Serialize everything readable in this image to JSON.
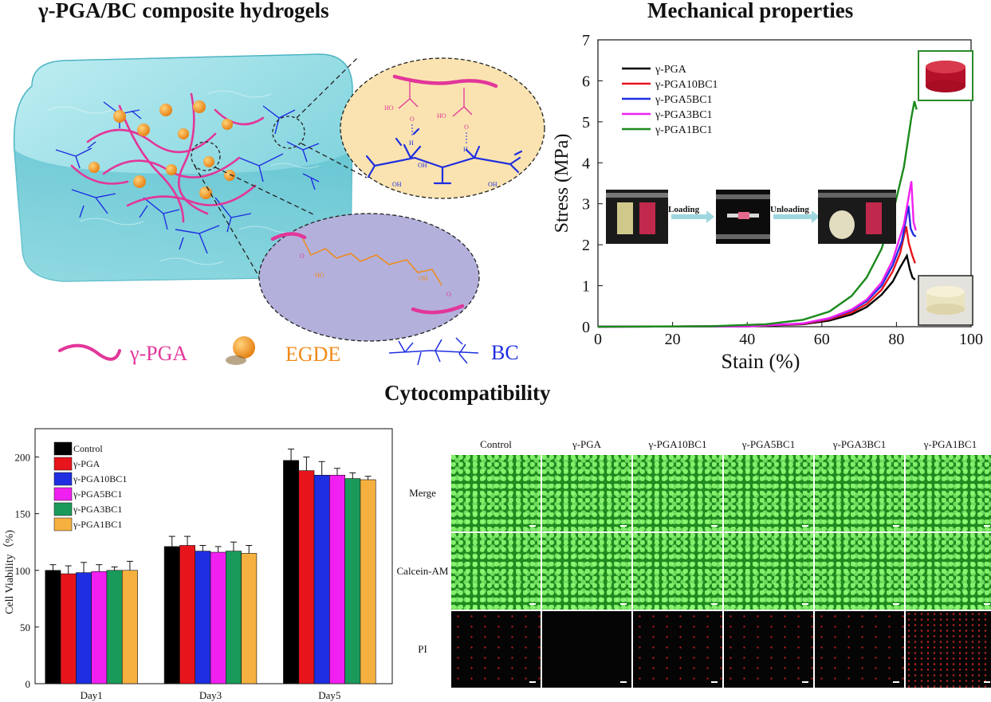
{
  "titles": {
    "left": "γ-PGA/BC composite hydrogels",
    "right": "Mechanical properties",
    "bottom": "Cytocompatibility"
  },
  "schematic": {
    "legend_pga": "γ-PGA",
    "legend_egde": "EGDE",
    "legend_bc": "BC",
    "colors": {
      "pga": "#e2369a",
      "egde": "#f08a18",
      "bc": "#1e2ee0",
      "water": "#7fd3dc",
      "zoom_top": "#fae3b0",
      "zoom_bottom": "#b3b0dc",
      "ether": "#f08a18"
    },
    "chem_top": {
      "ho1": "HO",
      "ho2": "HO",
      "o1": "O",
      "o2": "O",
      "h1": "H",
      "h2": "H",
      "oh": "OH"
    },
    "chem_bottom": {
      "ho": "HO",
      "oh": "OH",
      "o": "O"
    }
  },
  "mechanical": {
    "insets": {
      "loading": "Loading",
      "unloading": "Unloading"
    },
    "chart_data": {
      "type": "line",
      "xlabel": "Stain (%)",
      "ylabel": "Stress (MPa)",
      "xlim": [
        0,
        100
      ],
      "ylim": [
        0,
        7
      ],
      "xticks": [
        "0",
        "20",
        "40",
        "60",
        "80",
        "100"
      ],
      "yticks": [
        "0",
        "1",
        "2",
        "3",
        "4",
        "5",
        "6",
        "7"
      ],
      "legend_position": "top-left",
      "series": [
        {
          "name": "γ-PGA",
          "color": "#000000",
          "x": [
            0,
            40,
            55,
            62,
            68,
            72,
            76,
            79,
            81,
            82.8,
            83.6,
            84.3,
            85
          ],
          "y": [
            0,
            0.01,
            0.06,
            0.15,
            0.3,
            0.48,
            0.78,
            1.1,
            1.45,
            1.73,
            1.4,
            1.2,
            1.15
          ]
        },
        {
          "name": "γ-PGA10BC1",
          "color": "#e8141c",
          "x": [
            0,
            40,
            55,
            62,
            68,
            72,
            76,
            79,
            81,
            82.6,
            83.3,
            84.2,
            85
          ],
          "y": [
            0,
            0.01,
            0.07,
            0.18,
            0.35,
            0.55,
            0.9,
            1.35,
            1.8,
            2.45,
            2.05,
            1.75,
            1.55
          ]
        },
        {
          "name": "γ-PGA5BC1",
          "color": "#1e2ee0",
          "x": [
            0,
            40,
            55,
            62,
            68,
            72,
            76,
            79,
            81.5,
            83.2,
            83.8,
            84.5,
            85.2
          ],
          "y": [
            0,
            0.01,
            0.08,
            0.2,
            0.4,
            0.62,
            1.0,
            1.5,
            2.1,
            2.95,
            2.4,
            2.25,
            2.2
          ]
        },
        {
          "name": "γ-PGA3BC1",
          "color": "#f020f0",
          "x": [
            0,
            40,
            55,
            62,
            68,
            72,
            76,
            79,
            82,
            84,
            84.6,
            85.2
          ],
          "y": [
            0,
            0.01,
            0.08,
            0.21,
            0.42,
            0.66,
            1.08,
            1.62,
            2.5,
            3.55,
            2.55,
            2.35
          ]
        },
        {
          "name": "γ-PGA1BC1",
          "color": "#1a8a1a",
          "x": [
            0,
            30,
            45,
            55,
            62,
            68,
            72,
            76,
            79,
            82,
            84,
            84.8,
            85.4
          ],
          "y": [
            0,
            0.01,
            0.06,
            0.17,
            0.37,
            0.75,
            1.2,
            1.9,
            2.75,
            3.9,
            5.1,
            5.5,
            5.3
          ]
        }
      ]
    }
  },
  "viability": {
    "chart_data": {
      "type": "bar",
      "ylabel": "Cell Viability（%)",
      "ylim": [
        0,
        225
      ],
      "yticks": [
        "0",
        "50",
        "100",
        "150",
        "200"
      ],
      "categories": [
        "Day1",
        "Day3",
        "Day5"
      ],
      "legend_position": "top-left",
      "series": [
        {
          "name": "Control",
          "color": "#000000",
          "values": [
            100,
            121,
            197
          ],
          "errors": [
            5,
            9,
            10
          ]
        },
        {
          "name": "γ-PGA",
          "color": "#e8141c",
          "values": [
            97,
            122,
            188
          ],
          "errors": [
            7,
            8,
            12
          ]
        },
        {
          "name": "γ-PGA10BC1",
          "color": "#1e2ee0",
          "values": [
            98,
            117,
            184
          ],
          "errors": [
            9,
            5,
            12
          ]
        },
        {
          "name": "γ-PGA5BC1",
          "color": "#f020f0",
          "values": [
            99,
            116,
            184
          ],
          "errors": [
            6,
            5,
            6
          ]
        },
        {
          "name": "γ-PGA3BC1",
          "color": "#1a9a5a",
          "values": [
            100,
            117,
            181
          ],
          "errors": [
            3,
            8,
            5
          ]
        },
        {
          "name": "γ-PGA1BC1",
          "color": "#f5b040",
          "values": [
            100,
            115,
            180
          ],
          "errors": [
            8,
            7,
            3
          ]
        }
      ]
    }
  },
  "microscopy": {
    "columns": [
      "Control",
      "γ-PGA",
      "γ-PGA10BC1",
      "γ-PGA5BC1",
      "γ-PGA3BC1",
      "γ-PGA1BC1"
    ],
    "rows": [
      "Merge",
      "Calcein-AM",
      "PI"
    ]
  }
}
